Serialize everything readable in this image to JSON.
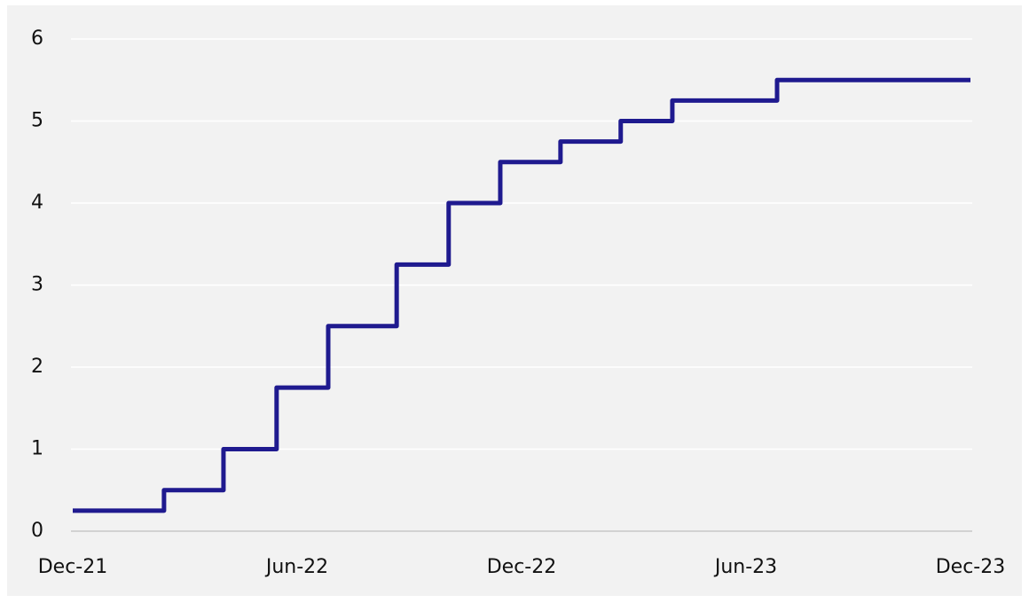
{
  "chart_data": {
    "type": "step-line",
    "x": [
      0,
      2.44,
      4.03,
      5.45,
      6.83,
      8.66,
      10.05,
      11.43,
      13.04,
      14.65,
      16.03,
      18.83,
      24
    ],
    "series": [
      {
        "color": "#1f1a8f",
        "values": [
          0.25,
          0.5,
          1,
          1.75,
          2.5,
          3.25,
          4,
          4.5,
          4.75,
          5,
          5.25,
          5.5,
          5.5
        ]
      }
    ],
    "xlim": [
      0,
      24
    ],
    "xticks": [
      {
        "value": 0,
        "label": "Dec-21"
      },
      {
        "value": 6,
        "label": "Jun-22"
      },
      {
        "value": 12,
        "label": "Dec-22"
      },
      {
        "value": 18,
        "label": "Jun-23"
      },
      {
        "value": 24,
        "label": "Dec-23"
      }
    ],
    "ylim": [
      0,
      6
    ],
    "yticks": [
      0,
      1,
      2,
      3,
      4,
      5,
      6
    ],
    "grid": true
  }
}
